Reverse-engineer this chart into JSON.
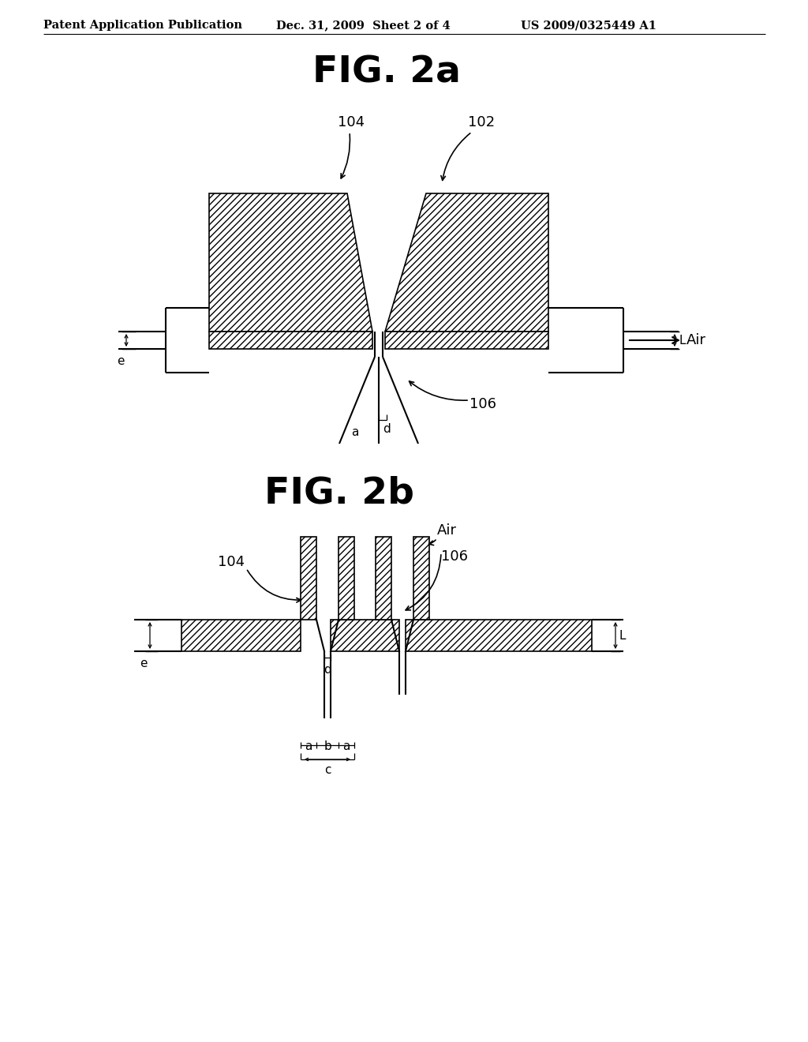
{
  "bg_color": "#ffffff",
  "line_color": "#000000",
  "header_left": "Patent Application Publication",
  "header_mid": "Dec. 31, 2009  Sheet 2 of 4",
  "header_right": "US 2009/0325449 A1",
  "fig2a_title": "FIG. 2a",
  "fig2b_title": "FIG. 2b",
  "label_102": "102",
  "label_104": "104",
  "label_106": "106",
  "label_air": "Air",
  "label_e": "e",
  "label_L": "L",
  "label_a": "a",
  "label_d": "d",
  "label_b": "b",
  "label_c": "c"
}
